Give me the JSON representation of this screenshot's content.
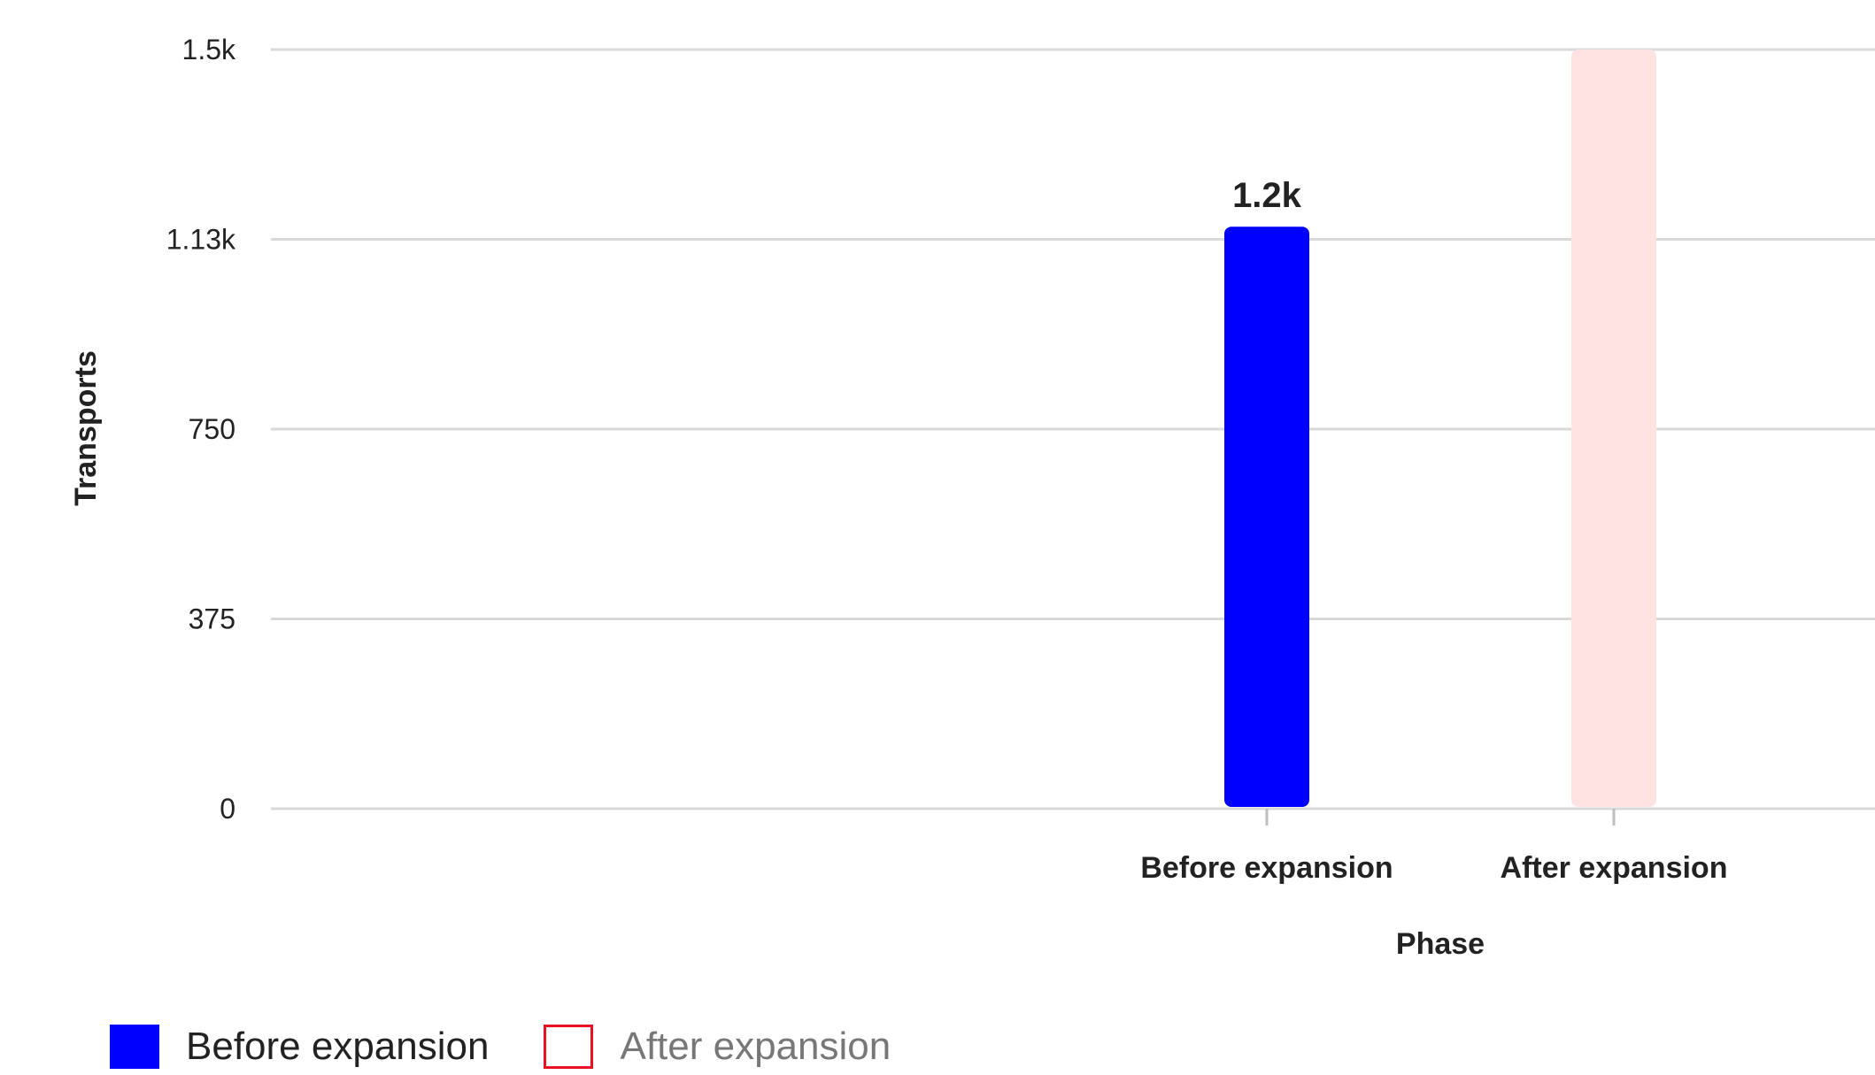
{
  "chart_data": {
    "type": "bar",
    "xlabel": "Phase",
    "ylabel": "Transports",
    "ylim": [
      0,
      1500
    ],
    "y_ticks": [
      {
        "value": 0,
        "label": "0"
      },
      {
        "value": 375,
        "label": "375"
      },
      {
        "value": 750,
        "label": "750"
      },
      {
        "value": 1125,
        "label": "1.13k"
      },
      {
        "value": 1500,
        "label": "1.5k"
      }
    ],
    "categories": [
      "Before expansion",
      "After expansion"
    ],
    "series": [
      {
        "name": "Before expansion",
        "color": "#0000ff",
        "visible": true,
        "values": [
          1150,
          null
        ],
        "data_labels": [
          "1.2k",
          null
        ]
      },
      {
        "name": "After expansion",
        "color": "#e81123",
        "visible": false,
        "values": [
          null,
          null
        ],
        "data_labels": [
          null,
          null
        ]
      }
    ],
    "grid": true,
    "legend_position": "bottom-left",
    "hover_band_color": "#ffe3e3"
  }
}
